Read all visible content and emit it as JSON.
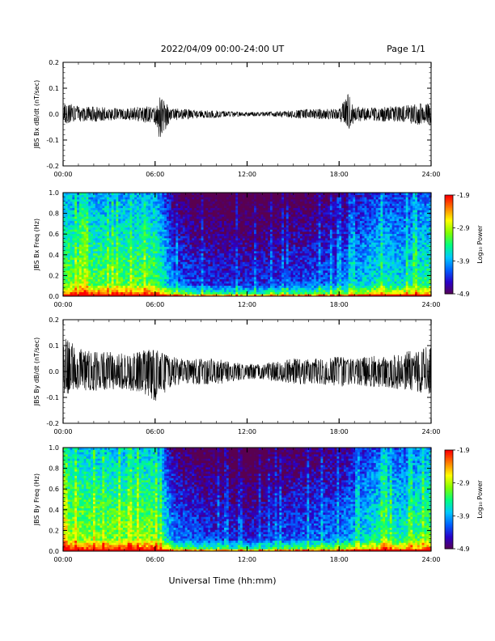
{
  "header": {
    "title": "2022/04/09  00:00-24:00 UT",
    "page": "Page 1/1"
  },
  "xlabel": "Universal Time (hh:mm)",
  "x_ticks": [
    "00:00",
    "06:00",
    "12:00",
    "18:00",
    "24:00"
  ],
  "colorbar": {
    "label": "Log₁₀ Power",
    "ticks": [
      "-1.9",
      "-2.9",
      "-3.9",
      "-4.9"
    ],
    "colors": [
      "#5a0050",
      "#2a00c8",
      "#0060ff",
      "#00c8ff",
      "#00ff80",
      "#80ff00",
      "#ffff00",
      "#ff8000",
      "#ff0000"
    ]
  },
  "chart_data": [
    {
      "type": "line",
      "ylabel": "JBS Bx dB/dt (nT/sec)",
      "xlim": [
        0,
        24
      ],
      "ylim": [
        -0.2,
        0.2
      ],
      "y_ticks": [
        "0.2",
        "0.1",
        "0.0",
        "-0.1",
        "-0.2"
      ],
      "x": [
        0,
        1,
        2,
        3,
        4,
        5,
        6,
        6.3,
        7,
        8,
        9,
        10,
        11,
        12,
        13,
        14,
        15,
        16,
        17,
        18,
        18.6,
        19,
        20,
        21,
        22,
        23,
        24
      ],
      "envelope_upper": [
        0.05,
        0.03,
        0.03,
        0.025,
        0.02,
        0.03,
        0.03,
        0.07,
        0.025,
        0.02,
        0.015,
        0.015,
        0.01,
        0.008,
        0.008,
        0.01,
        0.015,
        0.02,
        0.02,
        0.02,
        0.08,
        0.03,
        0.025,
        0.03,
        0.03,
        0.04,
        0.05
      ],
      "envelope_lower": [
        -0.04,
        -0.03,
        -0.03,
        -0.025,
        -0.02,
        -0.03,
        -0.04,
        -0.11,
        -0.025,
        -0.02,
        -0.015,
        -0.015,
        -0.01,
        -0.008,
        -0.008,
        -0.01,
        -0.015,
        -0.02,
        -0.02,
        -0.02,
        -0.07,
        -0.03,
        -0.025,
        -0.03,
        -0.03,
        -0.04,
        -0.05
      ],
      "color": "#000000"
    },
    {
      "type": "heatmap",
      "ylabel": "JBS Bx Freq (Hz)",
      "xlim": [
        0,
        24
      ],
      "ylim": [
        0,
        1.0
      ],
      "y_ticks": [
        "1.0",
        "0.8",
        "0.6",
        "0.4",
        "0.2",
        "0.0"
      ],
      "colorbar_range": [
        -4.9,
        -1.9
      ],
      "time_profile_hours": [
        0,
        3,
        6,
        7.3,
        9,
        12,
        15,
        18,
        20,
        21,
        22,
        24
      ],
      "time_profile_level": [
        0.62,
        0.6,
        0.62,
        0.3,
        0.22,
        0.2,
        0.24,
        0.3,
        0.45,
        0.5,
        0.45,
        0.55
      ]
    },
    {
      "type": "line",
      "ylabel": "JBS By dB/dt (nT/sec)",
      "xlim": [
        0,
        24
      ],
      "ylim": [
        -0.2,
        0.2
      ],
      "y_ticks": [
        "0.2",
        "0.1",
        "0.0",
        "-0.1",
        "-0.2"
      ],
      "x": [
        0,
        1,
        2,
        3,
        4,
        5,
        6,
        7,
        8,
        9,
        10,
        11,
        12,
        13,
        14,
        15,
        16,
        17,
        18,
        19,
        20,
        21,
        22,
        23,
        24
      ],
      "envelope_upper": [
        0.14,
        0.09,
        0.08,
        0.08,
        0.07,
        0.08,
        0.09,
        0.06,
        0.05,
        0.05,
        0.05,
        0.04,
        0.03,
        0.03,
        0.04,
        0.05,
        0.05,
        0.05,
        0.06,
        0.05,
        0.06,
        0.06,
        0.07,
        0.09,
        0.1
      ],
      "envelope_lower": [
        -0.1,
        -0.08,
        -0.08,
        -0.07,
        -0.07,
        -0.08,
        -0.12,
        -0.06,
        -0.05,
        -0.05,
        -0.05,
        -0.04,
        -0.03,
        -0.03,
        -0.04,
        -0.05,
        -0.05,
        -0.05,
        -0.06,
        -0.05,
        -0.06,
        -0.06,
        -0.07,
        -0.08,
        -0.09
      ],
      "color": "#000000"
    },
    {
      "type": "heatmap",
      "ylabel": "JBS By Freq (Hz)",
      "xlim": [
        0,
        24
      ],
      "ylim": [
        0,
        1.0
      ],
      "y_ticks": [
        "1.0",
        "0.8",
        "0.6",
        "0.4",
        "0.2",
        "0.0"
      ],
      "colorbar_range": [
        -4.9,
        -1.9
      ],
      "time_profile_hours": [
        0,
        3,
        6,
        7.3,
        9,
        12,
        15,
        18,
        20,
        21,
        22,
        24
      ],
      "time_profile_level": [
        0.68,
        0.65,
        0.66,
        0.32,
        0.25,
        0.18,
        0.28,
        0.32,
        0.48,
        0.55,
        0.5,
        0.62
      ]
    }
  ]
}
